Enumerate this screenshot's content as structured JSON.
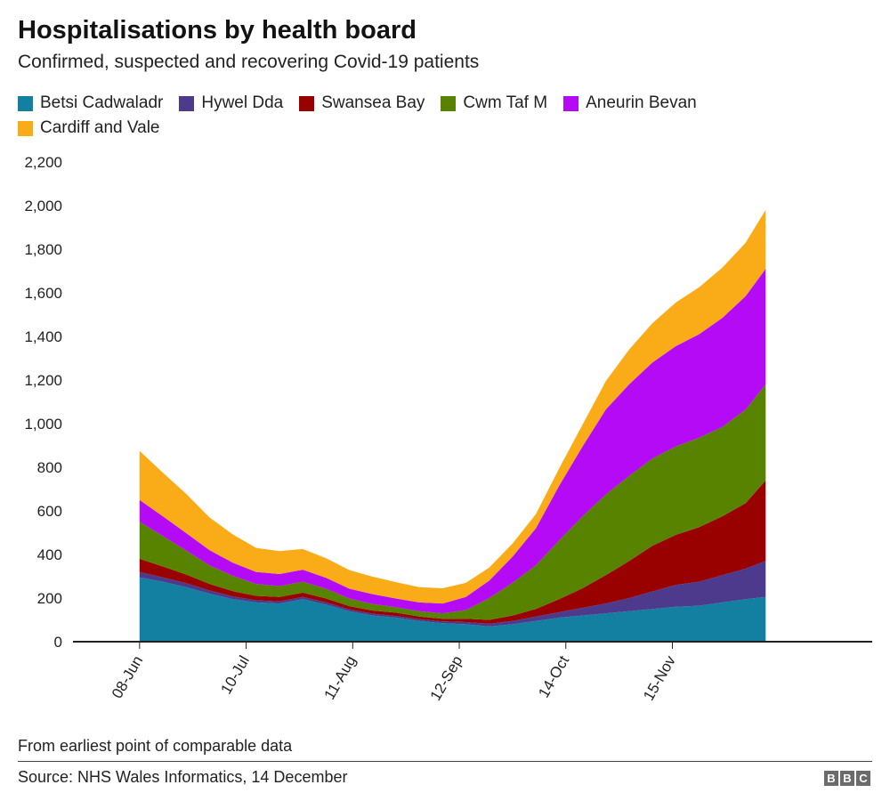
{
  "title": "Hospitalisations by health board",
  "subtitle": "Confirmed, suspected and recovering Covid-19 patients",
  "note": "From earliest point of comparable data",
  "source": "Source: NHS Wales Informatics, 14 December",
  "logo": [
    "B",
    "B",
    "C"
  ],
  "chart_data": {
    "type": "area",
    "stacked": true,
    "title": "Hospitalisations by health board",
    "subtitle": "Confirmed, suspected and recovering Covid-19 patients",
    "xlabel": "",
    "ylabel": "",
    "ylim": [
      0,
      2200
    ],
    "yticks": [
      0,
      200,
      400,
      600,
      800,
      1000,
      1200,
      1400,
      1600,
      1800,
      2000,
      2200
    ],
    "ytick_labels": [
      "0",
      "200",
      "400",
      "600",
      "800",
      "1,000",
      "1,200",
      "1,400",
      "1,600",
      "1,800",
      "2,000",
      "2,200"
    ],
    "xlim": [
      "2020-05-19",
      "2021-01-14"
    ],
    "xticks": [
      "2020-06-08",
      "2020-07-10",
      "2020-08-11",
      "2020-09-12",
      "2020-10-14",
      "2020-11-15"
    ],
    "xtick_labels": [
      "08-Jun",
      "10-Jul",
      "11-Aug",
      "12-Sep",
      "14-Oct",
      "15-Nov"
    ],
    "x": [
      "2020-06-08",
      "2020-06-15",
      "2020-06-22",
      "2020-06-29",
      "2020-07-06",
      "2020-07-13",
      "2020-07-20",
      "2020-07-27",
      "2020-08-03",
      "2020-08-10",
      "2020-08-17",
      "2020-08-24",
      "2020-08-31",
      "2020-09-07",
      "2020-09-14",
      "2020-09-21",
      "2020-09-28",
      "2020-10-05",
      "2020-10-12",
      "2020-10-19",
      "2020-10-26",
      "2020-11-02",
      "2020-11-09",
      "2020-11-16",
      "2020-11-23",
      "2020-11-30",
      "2020-12-07",
      "2020-12-13"
    ],
    "grid": false,
    "legend_position": "top",
    "series": [
      {
        "name": "Betsi Cadwaladr",
        "color": "#1380A1",
        "values": [
          295,
          275,
          250,
          220,
          195,
          180,
          175,
          195,
          170,
          140,
          120,
          110,
          95,
          85,
          80,
          70,
          80,
          95,
          110,
          120,
          130,
          140,
          150,
          160,
          165,
          180,
          195,
          205
        ]
      },
      {
        "name": "Hywel Dda",
        "color": "#4D3A8C",
        "values": [
          25,
          20,
          18,
          15,
          12,
          10,
          10,
          10,
          10,
          8,
          8,
          8,
          8,
          8,
          10,
          12,
          15,
          20,
          25,
          35,
          45,
          60,
          80,
          100,
          110,
          125,
          140,
          165
        ]
      },
      {
        "name": "Swansea Bay",
        "color": "#990000",
        "values": [
          60,
          50,
          40,
          30,
          25,
          20,
          20,
          20,
          18,
          15,
          15,
          15,
          12,
          12,
          15,
          18,
          25,
          35,
          60,
          90,
          130,
          170,
          210,
          230,
          250,
          270,
          300,
          370
        ]
      },
      {
        "name": "Cwm Taf M",
        "color": "#588300",
        "values": [
          170,
          140,
          110,
          85,
          70,
          55,
          50,
          50,
          45,
          35,
          30,
          25,
          25,
          25,
          40,
          100,
          150,
          200,
          270,
          330,
          370,
          390,
          400,
          405,
          410,
          410,
          430,
          440
        ]
      },
      {
        "name": "Aneurin Bevan",
        "color": "#B40AF5",
        "values": [
          100,
          90,
          80,
          70,
          60,
          55,
          55,
          55,
          50,
          45,
          45,
          40,
          40,
          45,
          60,
          80,
          120,
          170,
          250,
          320,
          390,
          420,
          440,
          460,
          475,
          500,
          520,
          530
        ]
      },
      {
        "name": "Cardiff and Vale",
        "color": "#FAAB18",
        "values": [
          225,
          200,
          180,
          150,
          130,
          110,
          105,
          95,
          90,
          85,
          80,
          75,
          70,
          70,
          65,
          60,
          60,
          65,
          80,
          100,
          130,
          160,
          180,
          200,
          215,
          230,
          245,
          270
        ]
      }
    ]
  }
}
